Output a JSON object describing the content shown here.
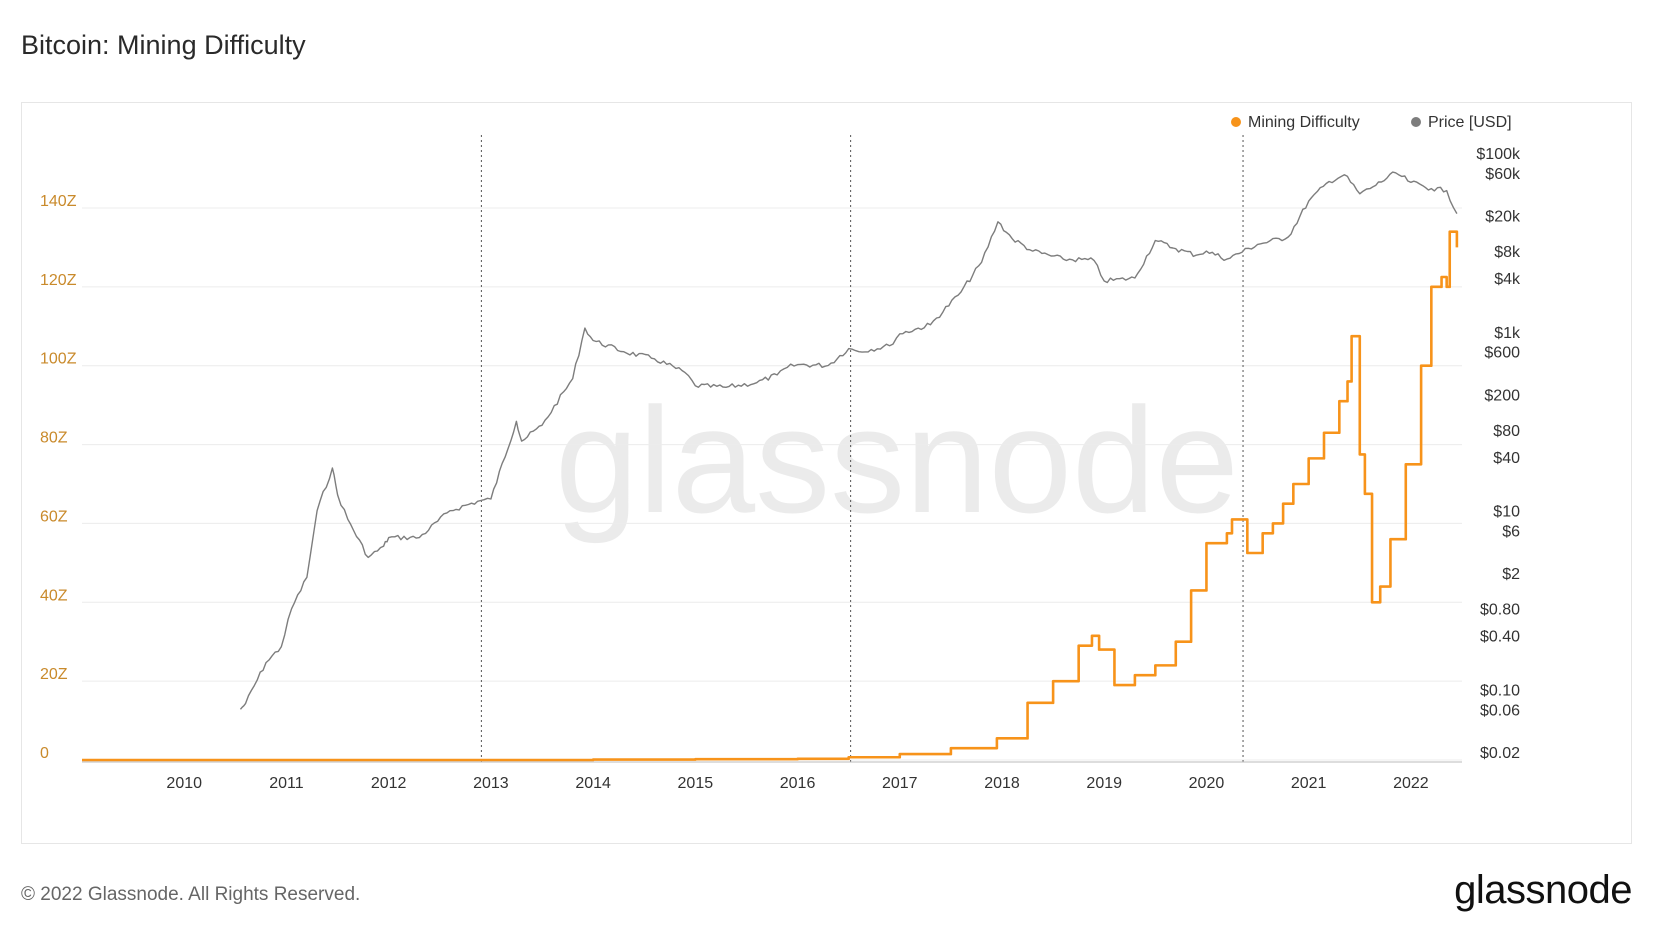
{
  "header": {
    "title": "Bitcoin: Mining Difficulty"
  },
  "footer": {
    "copyright": "© 2022 Glassnode. All Rights Reserved.",
    "brand": "glassnode"
  },
  "watermark": "glassnode",
  "colors": {
    "difficulty": "#f7931a",
    "price": "#7d7d7d",
    "grid": "#ececec",
    "left_axis_text": "#c98a2b"
  },
  "chart_data": {
    "type": "line",
    "title": "Bitcoin: Mining Difficulty",
    "legend": {
      "placement": "top-right",
      "entries": [
        "Mining Difficulty",
        "Price [USD]"
      ]
    },
    "grid": true,
    "x_ticks": [
      "2010",
      "2011",
      "2012",
      "2013",
      "2014",
      "2015",
      "2016",
      "2017",
      "2018",
      "2019",
      "2020",
      "2021",
      "2022"
    ],
    "y_left": {
      "ticks": [
        "0",
        "20Z",
        "40Z",
        "60Z",
        "80Z",
        "100Z",
        "120Z",
        "140Z"
      ],
      "range": [
        0,
        160
      ]
    },
    "y_right": {
      "scale": "log",
      "ticks": [
        "$100k",
        "$60k",
        "$20k",
        "$8k",
        "$4k",
        "$1k",
        "$600",
        "$200",
        "$80",
        "$40",
        "$10",
        "$6",
        "$2",
        "$0.80",
        "$0.40",
        "$0.10",
        "$0.06",
        "$0.02"
      ],
      "range": [
        0.015,
        120000
      ]
    },
    "vertical_markers": [
      "2012-11-28",
      "2016-07-09",
      "2020-05-11"
    ],
    "series": [
      {
        "name": "Mining Difficulty",
        "unit": "Z",
        "axis": "left",
        "x": [
          2009.0,
          2013.0,
          2014.0,
          2015.0,
          2016.0,
          2016.5,
          2017.0,
          2017.5,
          2017.95,
          2018.25,
          2018.5,
          2018.75,
          2018.88,
          2018.95,
          2019.1,
          2019.3,
          2019.5,
          2019.7,
          2019.85,
          2020.0,
          2020.2,
          2020.25,
          2020.4,
          2020.55,
          2020.65,
          2020.75,
          2020.85,
          2021.0,
          2021.15,
          2021.3,
          2021.38,
          2021.42,
          2021.5,
          2021.55,
          2021.62,
          2021.7,
          2021.8,
          2021.95,
          2022.1,
          2022.2,
          2022.3,
          2022.35,
          2022.38,
          2022.45
        ],
        "y": [
          0.0,
          0.0,
          0.1,
          0.2,
          0.3,
          0.7,
          1.5,
          3.0,
          5.5,
          14.5,
          20.0,
          29.0,
          31.5,
          28.0,
          19.0,
          21.5,
          24.0,
          30.0,
          43.0,
          55.0,
          57.5,
          61.0,
          52.5,
          57.5,
          60.0,
          65.0,
          70.0,
          76.5,
          83.0,
          91.0,
          96.0,
          107.5,
          77.5,
          67.5,
          40.0,
          44.0,
          56.0,
          75.0,
          100.0,
          120.0,
          122.5,
          120.0,
          134.0,
          130.0
        ]
      },
      {
        "name": "Price [USD]",
        "unit": "USD",
        "axis": "right",
        "x": [
          2010.55,
          2010.6,
          2010.8,
          2010.95,
          2011.05,
          2011.2,
          2011.3,
          2011.45,
          2011.5,
          2011.6,
          2011.8,
          2011.95,
          2012.0,
          2012.3,
          2012.6,
          2012.9,
          2013.0,
          2013.25,
          2013.3,
          2013.5,
          2013.8,
          2013.92,
          2014.0,
          2014.3,
          2014.6,
          2014.9,
          2015.0,
          2015.3,
          2015.6,
          2015.8,
          2015.9,
          2016.0,
          2016.3,
          2016.5,
          2016.6,
          2016.9,
          2017.0,
          2017.3,
          2017.6,
          2017.8,
          2017.96,
          2018.1,
          2018.3,
          2018.6,
          2018.9,
          2019.0,
          2019.3,
          2019.5,
          2019.7,
          2019.9,
          2020.0,
          2020.2,
          2020.5,
          2020.8,
          2021.0,
          2021.2,
          2021.35,
          2021.5,
          2021.6,
          2021.85,
          2022.0,
          2022.2,
          2022.35,
          2022.45
        ],
        "y": [
          0.06,
          0.07,
          0.2,
          0.3,
          0.8,
          1.8,
          10.0,
          30.0,
          15.0,
          8.0,
          3.0,
          4.0,
          5.0,
          5.0,
          10.0,
          13.0,
          13.5,
          100.0,
          60.0,
          90.0,
          300.0,
          1100.0,
          800.0,
          600.0,
          500.0,
          350.0,
          250.0,
          240.0,
          270.0,
          330.0,
          400.0,
          430.0,
          420.0,
          650.0,
          600.0,
          700.0,
          950.0,
          1200.0,
          2800.0,
          6000.0,
          17000.0,
          11000.0,
          8000.0,
          6500.0,
          6300.0,
          3700.0,
          4000.0,
          10500.0,
          8500.0,
          7200.0,
          8000.0,
          6500.0,
          9500.0,
          11500.0,
          29000.0,
          48000.0,
          57000.0,
          35000.0,
          40000.0,
          60000.0,
          47000.0,
          40000.0,
          38000.0,
          21000.0
        ]
      }
    ]
  }
}
